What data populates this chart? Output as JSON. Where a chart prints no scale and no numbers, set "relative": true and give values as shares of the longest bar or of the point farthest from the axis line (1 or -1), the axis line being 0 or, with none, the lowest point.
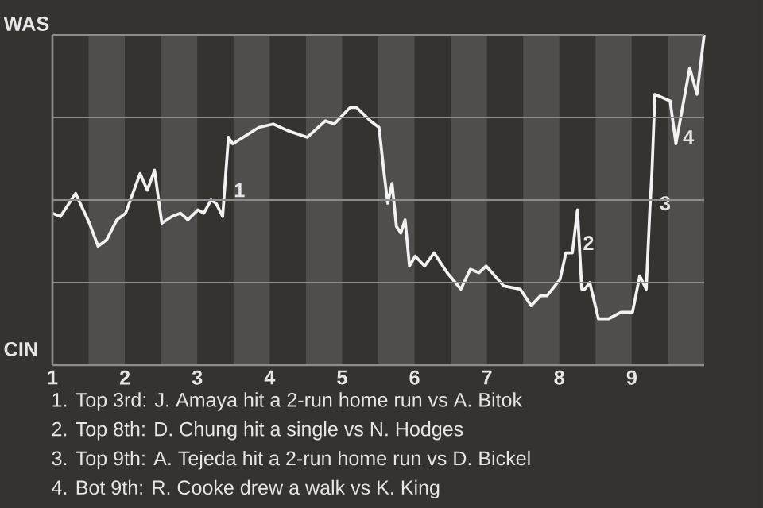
{
  "chart_data": {
    "type": "line",
    "relative": true,
    "x": [
      1.0,
      1.11,
      1.32,
      1.51,
      1.63,
      1.75,
      1.89,
      2.01,
      2.21,
      2.31,
      2.41,
      2.51,
      2.65,
      2.77,
      2.87,
      3.01,
      3.09,
      3.19,
      3.26,
      3.35,
      3.38,
      3.43,
      3.49,
      3.85,
      4.05,
      4.25,
      4.52,
      4.77,
      4.89,
      5.11,
      5.2,
      5.39,
      5.51,
      5.58,
      5.63,
      5.69,
      5.75,
      5.81,
      5.87,
      5.93,
      6.01,
      6.14,
      6.27,
      6.45,
      6.64,
      6.77,
      6.89,
      6.99,
      7.23,
      7.46,
      7.61,
      7.74,
      7.83,
      8.01,
      8.09,
      8.18,
      8.25,
      8.31,
      8.35,
      8.42,
      8.54,
      8.68,
      8.85,
      9.01,
      9.11,
      9.2,
      9.25,
      9.28,
      9.32,
      9.53,
      9.61,
      9.8,
      9.9,
      10.0
    ],
    "series": [
      {
        "color": "#f2f2f2",
        "values": [
          0.46,
          0.45,
          0.52,
          0.43,
          0.36,
          0.38,
          0.44,
          0.46,
          0.58,
          0.53,
          0.59,
          0.43,
          0.45,
          0.46,
          0.44,
          0.47,
          0.46,
          0.5,
          0.49,
          0.45,
          0.54,
          0.69,
          0.67,
          0.72,
          0.73,
          0.71,
          0.69,
          0.74,
          0.73,
          0.78,
          0.78,
          0.74,
          0.72,
          0.58,
          0.49,
          0.55,
          0.42,
          0.4,
          0.44,
          0.3,
          0.33,
          0.3,
          0.34,
          0.28,
          0.23,
          0.29,
          0.28,
          0.3,
          0.24,
          0.23,
          0.18,
          0.21,
          0.21,
          0.26,
          0.34,
          0.34,
          0.47,
          0.23,
          0.23,
          0.25,
          0.14,
          0.14,
          0.16,
          0.16,
          0.27,
          0.23,
          0.47,
          0.59,
          0.82,
          0.8,
          0.67,
          0.9,
          0.82,
          1.0
        ]
      }
    ],
    "xlim": [
      1,
      10
    ],
    "xticks": [
      1,
      2,
      3,
      4,
      5,
      6,
      7,
      8,
      9
    ],
    "grid": "y",
    "bands": [
      {
        "axis": "x",
        "from": 1.5,
        "to": 2,
        "color": "#4f4e4c"
      },
      {
        "axis": "x",
        "from": 2.5,
        "to": 3,
        "color": "#4f4e4c"
      },
      {
        "axis": "x",
        "from": 3.5,
        "to": 4,
        "color": "#4f4e4c"
      },
      {
        "axis": "x",
        "from": 4.5,
        "to": 5,
        "color": "#4f4e4c"
      },
      {
        "axis": "x",
        "from": 5.5,
        "to": 6,
        "color": "#4f4e4c"
      },
      {
        "axis": "x",
        "from": 6.5,
        "to": 7,
        "color": "#4f4e4c"
      },
      {
        "axis": "x",
        "from": 7.5,
        "to": 8,
        "color": "#4f4e4c"
      },
      {
        "axis": "x",
        "from": 8.5,
        "to": 9,
        "color": "#4f4e4c"
      },
      {
        "axis": "x",
        "from": 9.5,
        "to": 10,
        "color": "#4f4e4c"
      }
    ],
    "annotations": [
      "WAS",
      "CIN",
      {
        "text": "1",
        "x": 3.47,
        "y": 0.53
      },
      {
        "text": "2",
        "x": 8.29,
        "y": 0.37
      },
      {
        "text": "3",
        "x": 9.35,
        "y": 0.49
      },
      {
        "text": "4",
        "x": 9.67,
        "y": 0.69
      },
      "1. Top 3rd: J. Amaya hit a 2-run home run vs A. Bitok",
      "2. Top 8th: D. Chung hit a single vs N. Hodges",
      "3. Top 9th: A. Tejeda hit a 2-run home run vs D. Bickel",
      "4. Bot 9th: R. Cooke drew a walk vs K. King"
    ]
  }
}
